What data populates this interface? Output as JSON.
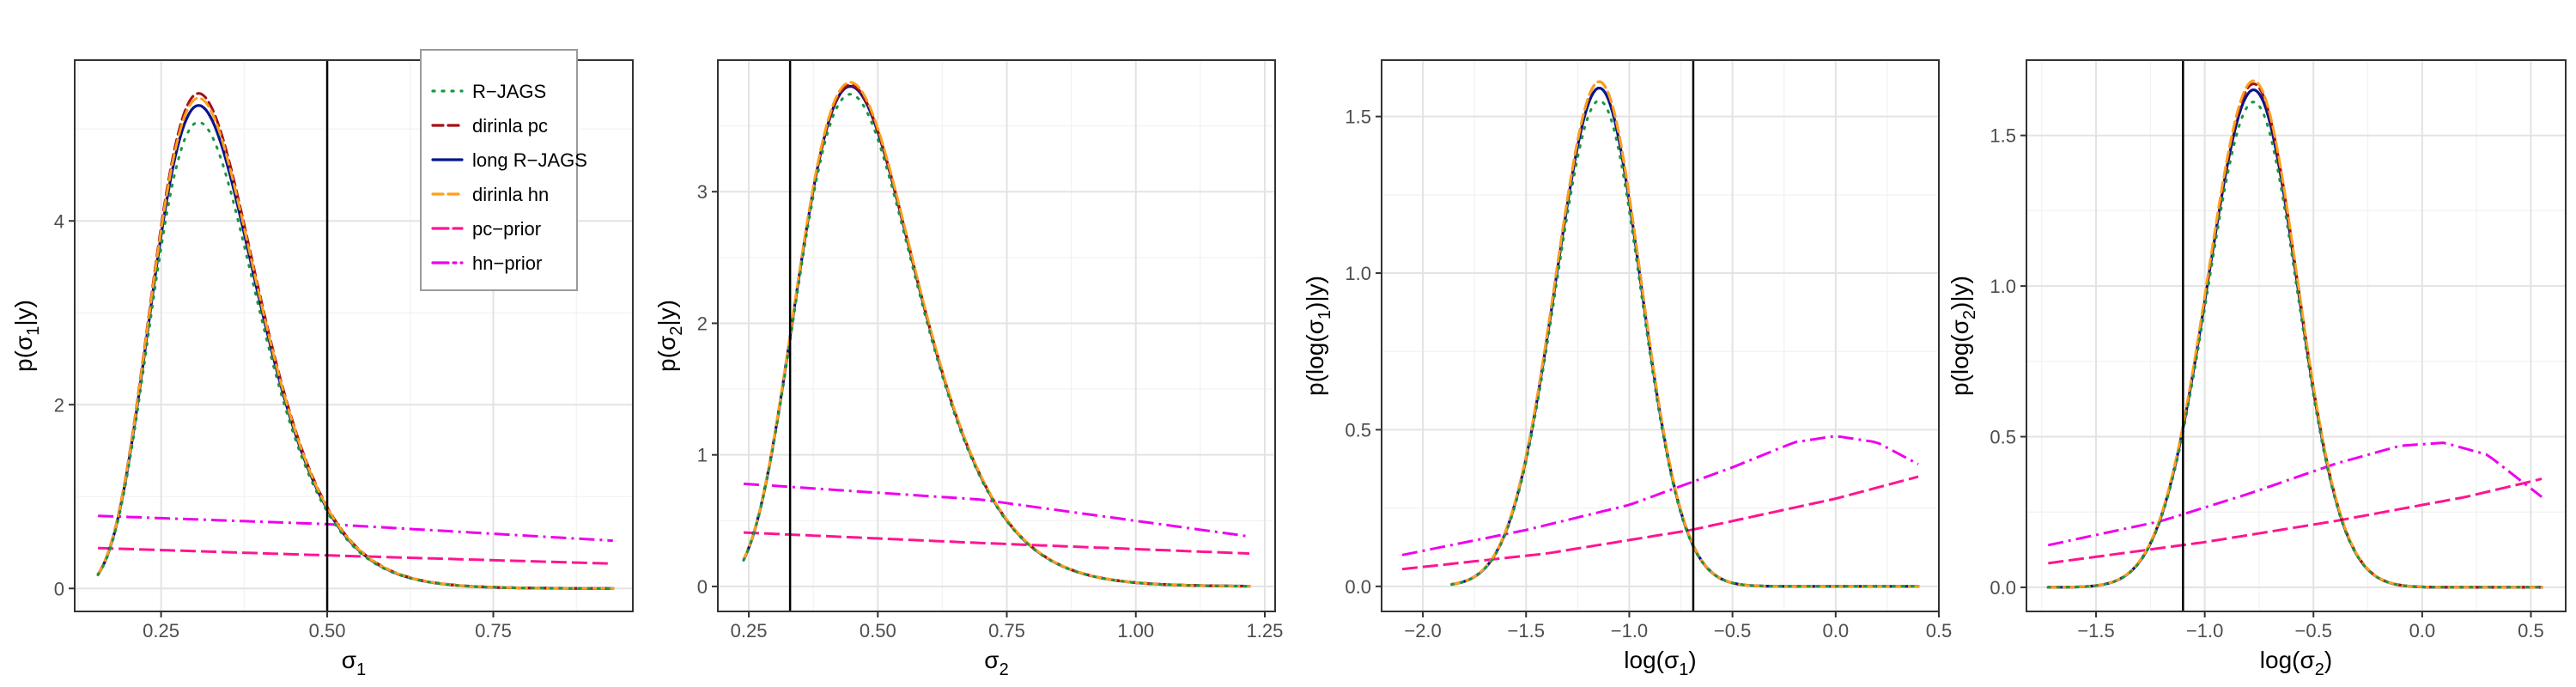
{
  "chart_data": [
    {
      "type": "line",
      "xlabel_main": "σ",
      "xlabel_sub": "1",
      "ylabel_main": "p(σ",
      "ylabel_sub": "1",
      "ylabel_end": "|y)",
      "xlim": [
        0.12,
        0.96
      ],
      "ylim": [
        -0.25,
        5.75
      ],
      "xticks": [
        0.25,
        0.5,
        0.75
      ],
      "xtick_labels": [
        "0.25",
        "0.50",
        "0.75"
      ],
      "yticks": [
        0,
        2,
        4
      ],
      "ytick_labels": [
        "0",
        "2",
        "4"
      ],
      "xminor": [
        0.125,
        0.375,
        0.625,
        0.875
      ],
      "yminor": [
        1,
        3,
        5
      ],
      "vline": 0.5,
      "grid": true,
      "legend": true,
      "posterior": {
        "x0": 0.155,
        "x1": 0.93,
        "peak": 0.295,
        "s": 0.26,
        "peaks": {
          "R-JAGS": 5.02,
          "dirinla pc": 5.33,
          "long R-JAGS": 5.2,
          "dirinla hn": 5.28
        }
      },
      "priors": {
        "pc-prior": {
          "x": [
            0.155,
            0.5,
            0.93
          ],
          "y": [
            0.44,
            0.36,
            0.27
          ]
        },
        "hn-prior": {
          "x": [
            0.155,
            0.5,
            0.93
          ],
          "y": [
            0.79,
            0.7,
            0.52
          ]
        }
      }
    },
    {
      "type": "line",
      "xlabel_main": "σ",
      "xlabel_sub": "2",
      "ylabel_main": "p(σ",
      "ylabel_sub": "2",
      "ylabel_end": "|y)",
      "xlim": [
        0.19,
        1.27
      ],
      "ylim": [
        -0.19,
        4.0
      ],
      "xticks": [
        0.25,
        0.5,
        0.75,
        1.0,
        1.25
      ],
      "xtick_labels": [
        "0.25",
        "0.50",
        "0.75",
        "1.00",
        "1.25"
      ],
      "yticks": [
        0,
        1,
        2,
        3
      ],
      "ytick_labels": [
        "0",
        "1",
        "2",
        "3"
      ],
      "xminor": [
        0.375,
        0.625,
        0.875,
        1.125
      ],
      "yminor": [
        0.5,
        1.5,
        2.5,
        3.5
      ],
      "vline": 0.33,
      "grid": true,
      "legend": false,
      "posterior": {
        "x0": 0.24,
        "x1": 1.22,
        "peak": 0.43,
        "s": 0.26,
        "peaks": {
          "R-JAGS": 3.7,
          "dirinla pc": 3.77,
          "long R-JAGS": 3.76,
          "dirinla hn": 3.79
        }
      },
      "priors": {
        "pc-prior": {
          "x": [
            0.24,
            0.7,
            1.22
          ],
          "y": [
            0.41,
            0.33,
            0.25
          ]
        },
        "hn-prior": {
          "x": [
            0.24,
            0.7,
            1.22
          ],
          "y": [
            0.78,
            0.66,
            0.38
          ]
        }
      }
    },
    {
      "type": "line",
      "xlabel_main": "log(σ",
      "xlabel_sub": "1",
      "xlabel_end": ")",
      "ylabel_main": "p(log(σ",
      "ylabel_sub": "1",
      "ylabel_end": ")|y)",
      "xlim": [
        -2.2,
        0.5
      ],
      "ylim": [
        -0.08,
        1.68
      ],
      "xticks": [
        -2.0,
        -1.5,
        -1.0,
        -0.5,
        0.0,
        0.5
      ],
      "xtick_labels": [
        "−2.0",
        "−1.5",
        "−1.0",
        "−0.5",
        "0.0",
        "0.5"
      ],
      "yticks": [
        0,
        0.5,
        1.0,
        1.5
      ],
      "ytick_labels": [
        "0.0",
        "0.5",
        "1.0",
        "1.5"
      ],
      "xminor": [
        -1.75,
        -1.25,
        -0.75,
        -0.25,
        0.25
      ],
      "yminor": [
        0.25,
        0.75,
        1.25
      ],
      "vline": -0.69,
      "grid": true,
      "legend": false,
      "posterior": {
        "x0": -1.86,
        "x1": 0.4,
        "peak": -1.17,
        "s": 0.21,
        "peaks": {
          "R-JAGS": 1.54,
          "dirinla pc": 1.6,
          "long R-JAGS": 1.58,
          "dirinla hn": 1.6
        }
      },
      "priors": {
        "pc-prior": {
          "x": [
            -2.1,
            -1.4,
            -0.7,
            0.0,
            0.4
          ],
          "y": [
            0.055,
            0.105,
            0.18,
            0.28,
            0.35
          ]
        },
        "hn-prior": {
          "x": [
            -2.1,
            -1.5,
            -1.0,
            -0.5,
            -0.2,
            0.0,
            0.2,
            0.4
          ],
          "y": [
            0.1,
            0.18,
            0.26,
            0.38,
            0.46,
            0.48,
            0.46,
            0.39
          ]
        }
      }
    },
    {
      "type": "line",
      "xlabel_main": "log(σ",
      "xlabel_sub": "2",
      "xlabel_end": ")",
      "ylabel_main": "p(log(σ",
      "ylabel_sub": "2",
      "ylabel_end": ")|y)",
      "xlim": [
        -1.82,
        0.66
      ],
      "ylim": [
        -0.08,
        1.75
      ],
      "xticks": [
        -1.5,
        -1.0,
        -0.5,
        0.0,
        0.5
      ],
      "xtick_labels": [
        "−1.5",
        "−1.0",
        "−0.5",
        "0.0",
        "0.5"
      ],
      "yticks": [
        0,
        0.5,
        1.0,
        1.5
      ],
      "ytick_labels": [
        "0.0",
        "0.5",
        "1.0",
        "1.5"
      ],
      "xminor": [
        -1.75,
        -1.25,
        -0.75,
        -0.25,
        0.25
      ],
      "yminor": [
        0.25,
        0.75,
        1.25
      ],
      "vline": -1.1,
      "grid": true,
      "legend": false,
      "posterior": {
        "x0": -1.72,
        "x1": 0.55,
        "peak": -0.8,
        "s": 0.21,
        "peaks": {
          "R-JAGS": 1.6,
          "dirinla pc": 1.66,
          "long R-JAGS": 1.64,
          "dirinla hn": 1.67
        }
      },
      "priors": {
        "pc-prior": {
          "x": [
            -1.72,
            -1.0,
            -0.4,
            0.2,
            0.55
          ],
          "y": [
            0.08,
            0.15,
            0.22,
            0.3,
            0.36
          ]
        },
        "hn-prior": {
          "x": [
            -1.72,
            -1.2,
            -0.8,
            -0.4,
            -0.1,
            0.1,
            0.3,
            0.55
          ],
          "y": [
            0.14,
            0.22,
            0.31,
            0.41,
            0.47,
            0.48,
            0.44,
            0.3
          ]
        }
      }
    }
  ],
  "legend": {
    "entries": [
      {
        "name": "R−JAGS",
        "key": "R-JAGS",
        "color": "#1a9641",
        "dash": "2,9"
      },
      {
        "name": "dirinla pc",
        "key": "dirinla pc",
        "color": "#a50f15",
        "dash": "12,6"
      },
      {
        "name": "long R−JAGS",
        "key": "long R-JAGS",
        "color": "#08148c",
        "dash": ""
      },
      {
        "name": "dirinla hn",
        "key": "dirinla hn",
        "color": "#ff9f1a",
        "dash": "12,6"
      },
      {
        "name": "pc−prior",
        "key": "pc-prior",
        "color": "#ff1493",
        "dash": "18,6"
      },
      {
        "name": "hn−prior",
        "key": "hn-prior",
        "color": "#ee00ee",
        "dash": "18,6,3,6"
      }
    ]
  }
}
